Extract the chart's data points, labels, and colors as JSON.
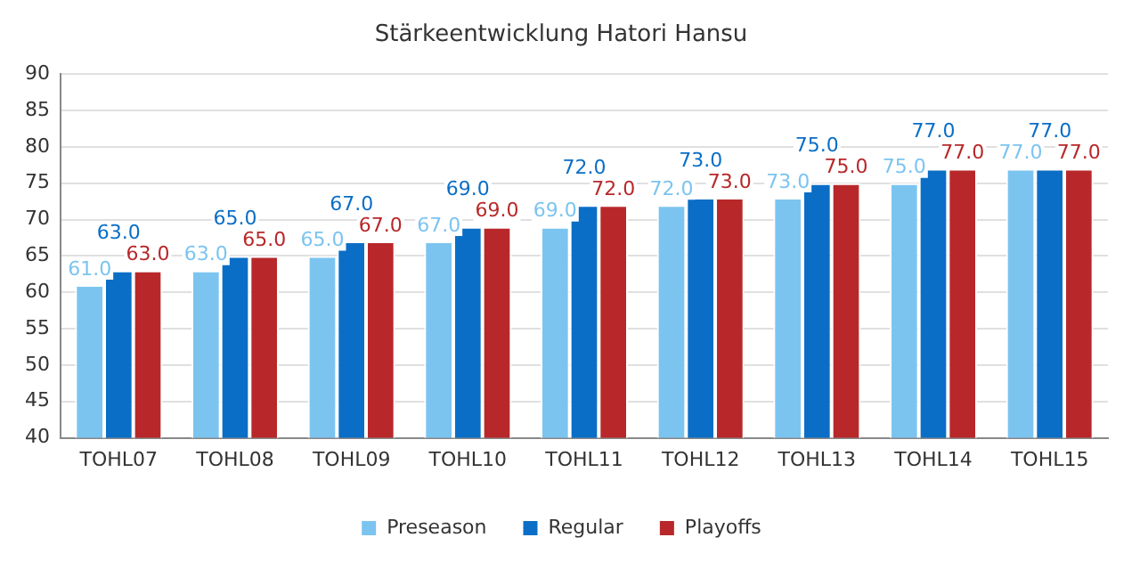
{
  "chart_data": {
    "type": "bar",
    "title": "Stärkeentwicklung Hatori Hansu",
    "categories": [
      "TOHL07",
      "TOHL08",
      "TOHL09",
      "TOHL10",
      "TOHL11",
      "TOHL12",
      "TOHL13",
      "TOHL14",
      "TOHL15"
    ],
    "series": [
      {
        "name": "Preseason",
        "color": "#7cc4f0",
        "values": [
          61,
          63,
          65,
          67,
          69,
          72,
          73,
          75,
          77
        ],
        "value_labels": [
          "61.0",
          "63.0",
          "65.0",
          "67.0",
          "69.0",
          "72.0",
          "73.0",
          "75.0",
          "77.0"
        ]
      },
      {
        "name": "Regular",
        "color": "#0a6ec6",
        "values": [
          63,
          65,
          67,
          69,
          72,
          73,
          75,
          77,
          77
        ],
        "value_labels": [
          "63.0",
          "65.0",
          "67.0",
          "69.0",
          "72.0",
          "73.0",
          "75.0",
          "77.0",
          "77.0"
        ]
      },
      {
        "name": "Playoffs",
        "color": "#b8282a",
        "values": [
          63,
          65,
          67,
          69,
          72,
          73,
          75,
          77,
          77
        ],
        "value_labels": [
          "63.0",
          "65.0",
          "67.0",
          "69.0",
          "72.0",
          "73.0",
          "75.0",
          "77.0",
          "77.0"
        ]
      }
    ],
    "ylim": [
      40,
      90
    ],
    "yticks": [
      40,
      45,
      50,
      55,
      60,
      65,
      70,
      75,
      80,
      85,
      90
    ],
    "grid": "y",
    "legend": "bottom"
  }
}
